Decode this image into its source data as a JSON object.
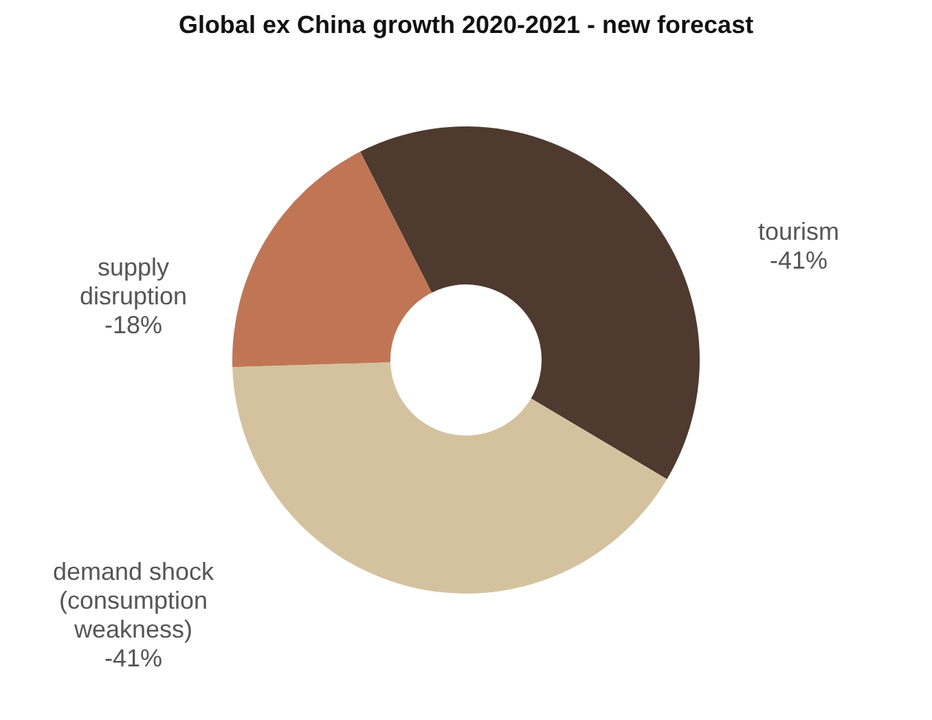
{
  "chart_data": {
    "type": "donut",
    "title": "Global ex China growth 2020-2021 - new forecast",
    "categories": [
      "tourism",
      "demand shock (consumption weakness)",
      "supply disruption"
    ],
    "values": [
      41,
      41,
      18
    ],
    "annotations": [
      "-41%",
      "-41%",
      "-18%"
    ],
    "colors": [
      "#4e3a2f",
      "#d4c29f",
      "#c07655"
    ],
    "legend": false
  }
}
